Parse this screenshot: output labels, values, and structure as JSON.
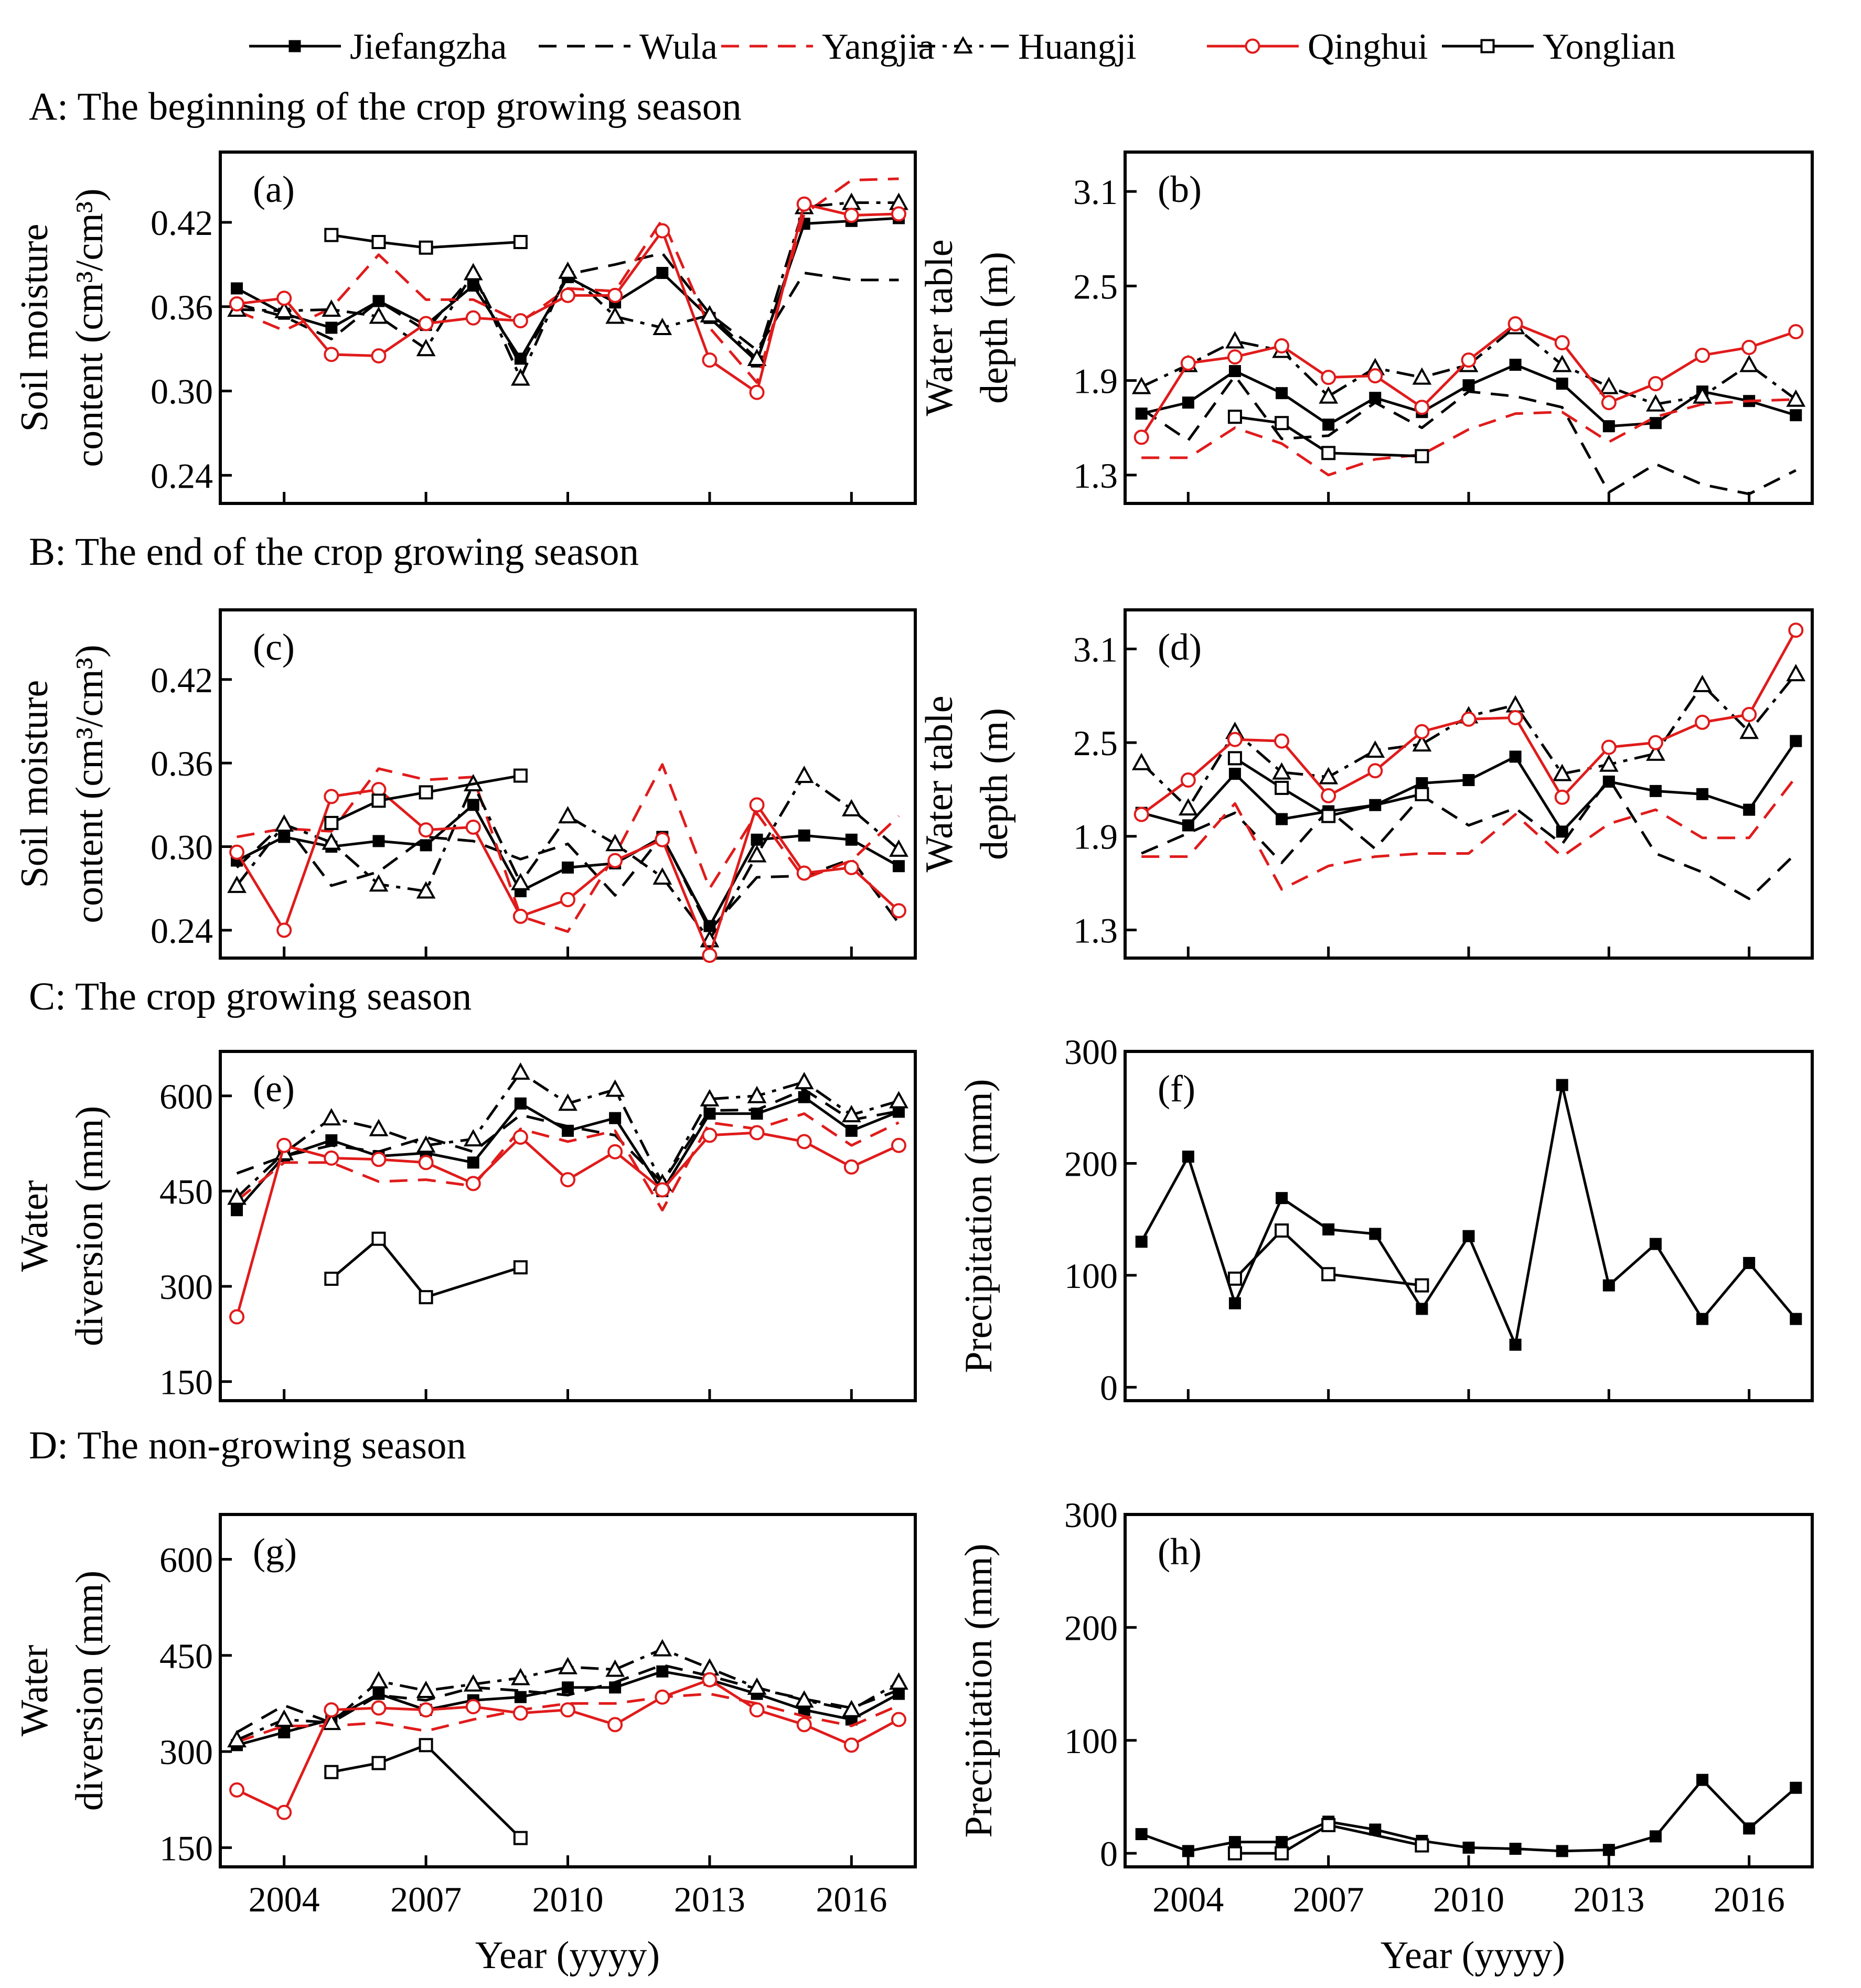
{
  "legend": [
    {
      "name": "Jiefangzha",
      "color": "#000000",
      "dash": "solid",
      "marker": "square-filled"
    },
    {
      "name": "Wula",
      "color": "#000000",
      "dash": "dash",
      "marker": "none"
    },
    {
      "name": "Yangjia",
      "color": "#e01b1b",
      "dash": "dash",
      "marker": "none"
    },
    {
      "name": "Huangji",
      "color": "#000000",
      "dash": "dashdot",
      "marker": "triangle-open"
    },
    {
      "name": "Qinghui",
      "color": "#e01b1b",
      "dash": "solid",
      "marker": "circle-open"
    },
    {
      "name": "Yonglian",
      "color": "#000000",
      "dash": "solid",
      "marker": "square-open"
    }
  ],
  "sections": {
    "A": "A: The beginning of the crop growing season",
    "B": "B: The end of the crop growing season",
    "C": "C: The crop growing season",
    "D": "D: The non-growing season"
  },
  "xlabel": "Year (yyyy)",
  "chart_data": [
    {
      "panel": "(a)",
      "type": "line",
      "ylabel_lines": [
        "Soil moisture",
        "content (cm³/cm³)"
      ],
      "ylim": [
        0.22,
        0.47
      ],
      "yticks": [
        0.24,
        0.3,
        0.36,
        0.42
      ],
      "ytick_decimals": 2,
      "x": [
        2003,
        2004,
        2005,
        2006,
        2007,
        2008,
        2009,
        2010,
        2011,
        2012,
        2013,
        2014,
        2015,
        2016,
        2017
      ],
      "series": [
        {
          "name": "Jiefangzha",
          "values": [
            0.373,
            0.355,
            0.345,
            0.364,
            0.347,
            0.375,
            0.323,
            0.381,
            0.363,
            0.384,
            0.352,
            0.321,
            0.419,
            0.421,
            0.423
          ]
        },
        {
          "name": "Wula",
          "values": [
            0.362,
            0.353,
            0.337,
            0.364,
            0.343,
            0.383,
            0.318,
            0.383,
            0.39,
            0.398,
            0.355,
            0.329,
            0.384,
            0.379,
            0.379
          ]
        },
        {
          "name": "Yangjia",
          "values": [
            0.357,
            0.343,
            0.359,
            0.397,
            0.365,
            0.365,
            0.349,
            0.373,
            0.371,
            0.422,
            0.345,
            0.306,
            0.426,
            0.45,
            0.451
          ]
        },
        {
          "name": "Huangji",
          "values": [
            0.358,
            0.357,
            0.358,
            0.353,
            0.33,
            0.384,
            0.309,
            0.385,
            0.353,
            0.345,
            0.354,
            0.323,
            0.431,
            0.434,
            0.434
          ]
        },
        {
          "name": "Qinghui",
          "values": [
            0.362,
            0.366,
            0.326,
            0.325,
            0.348,
            0.352,
            0.35,
            0.368,
            0.368,
            0.414,
            0.322,
            0.299,
            0.433,
            0.425,
            0.426
          ]
        },
        {
          "name": "Yonglian",
          "values": [
            null,
            null,
            0.411,
            0.406,
            0.402,
            null,
            0.406,
            null,
            null,
            null,
            null,
            null,
            null,
            null,
            null
          ]
        }
      ]
    },
    {
      "panel": "(b)",
      "type": "line",
      "ylabel_lines": [
        "Water table",
        "depth (m)"
      ],
      "ylim": [
        1.12,
        3.35
      ],
      "yticks": [
        1.3,
        1.9,
        2.5,
        3.1
      ],
      "ytick_decimals": 1,
      "x": [
        2003,
        2004,
        2005,
        2006,
        2007,
        2008,
        2009,
        2010,
        2011,
        2012,
        2013,
        2014,
        2015,
        2016,
        2017
      ],
      "series": [
        {
          "name": "Jiefangzha",
          "values": [
            1.69,
            1.76,
            1.96,
            1.82,
            1.62,
            1.79,
            1.7,
            1.87,
            2.0,
            1.88,
            1.61,
            1.63,
            1.83,
            1.77,
            1.68
          ]
        },
        {
          "name": "Wula",
          "values": [
            1.72,
            1.52,
            1.93,
            1.53,
            1.55,
            1.76,
            1.6,
            1.83,
            1.8,
            1.73,
            1.19,
            1.37,
            1.24,
            1.18,
            1.33
          ]
        },
        {
          "name": "Yangjia",
          "values": [
            1.41,
            1.41,
            1.6,
            1.5,
            1.3,
            1.4,
            1.43,
            1.59,
            1.69,
            1.7,
            1.51,
            1.67,
            1.75,
            1.77,
            1.78
          ]
        },
        {
          "name": "Huangji",
          "values": [
            1.86,
            2.0,
            2.15,
            2.09,
            1.8,
            1.98,
            1.92,
            2.0,
            2.24,
            2.0,
            1.86,
            1.75,
            1.8,
            2.0,
            1.78
          ]
        },
        {
          "name": "Qinghui",
          "values": [
            1.54,
            2.01,
            2.05,
            2.12,
            1.92,
            1.93,
            1.73,
            2.03,
            2.26,
            2.14,
            1.76,
            1.88,
            2.06,
            2.11,
            2.21
          ]
        },
        {
          "name": "Yonglian",
          "values": [
            null,
            null,
            1.67,
            1.63,
            1.44,
            null,
            1.42,
            null,
            null,
            null,
            null,
            null,
            null,
            null,
            null
          ]
        }
      ]
    },
    {
      "panel": "(c)",
      "type": "line",
      "ylabel_lines": [
        "Soil moisture",
        "content (cm³/cm³)"
      ],
      "ylim": [
        0.22,
        0.47
      ],
      "yticks": [
        0.24,
        0.3,
        0.36,
        0.42
      ],
      "ytick_decimals": 2,
      "x": [
        2003,
        2004,
        2005,
        2006,
        2007,
        2008,
        2009,
        2010,
        2011,
        2012,
        2013,
        2014,
        2015,
        2016,
        2017
      ],
      "series": [
        {
          "name": "Jiefangzha",
          "values": [
            0.29,
            0.307,
            0.3,
            0.304,
            0.301,
            0.33,
            0.268,
            0.285,
            0.288,
            0.307,
            0.243,
            0.305,
            0.308,
            0.305,
            0.286
          ]
        },
        {
          "name": "Wula",
          "values": [
            0.285,
            0.317,
            0.272,
            0.282,
            0.307,
            0.304,
            0.291,
            0.302,
            0.265,
            0.308,
            0.24,
            0.278,
            0.279,
            0.291,
            0.245
          ]
        },
        {
          "name": "Yangjia",
          "values": [
            0.307,
            0.313,
            0.311,
            0.356,
            0.348,
            0.35,
            0.25,
            0.239,
            0.294,
            0.359,
            0.27,
            0.324,
            0.277,
            0.29,
            0.322
          ]
        },
        {
          "name": "Huangji",
          "values": [
            0.272,
            0.316,
            0.303,
            0.273,
            0.268,
            0.345,
            0.274,
            0.322,
            0.302,
            0.278,
            0.233,
            0.294,
            0.351,
            0.327,
            0.298
          ]
        },
        {
          "name": "Qinghui",
          "values": [
            0.296,
            0.24,
            0.336,
            0.341,
            0.312,
            0.314,
            0.25,
            0.262,
            0.29,
            0.305,
            0.222,
            0.33,
            0.281,
            0.285,
            0.254
          ]
        },
        {
          "name": "Yonglian",
          "values": [
            null,
            null,
            0.317,
            0.333,
            0.339,
            null,
            0.351,
            null,
            null,
            null,
            null,
            null,
            null,
            null,
            null
          ]
        }
      ]
    },
    {
      "panel": "(d)",
      "type": "line",
      "ylabel_lines": [
        "Water table",
        "depth (m)"
      ],
      "ylim": [
        1.12,
        3.35
      ],
      "yticks": [
        1.3,
        1.9,
        2.5,
        3.1
      ],
      "ytick_decimals": 1,
      "x": [
        2003,
        2004,
        2005,
        2006,
        2007,
        2008,
        2009,
        2010,
        2011,
        2012,
        2013,
        2014,
        2015,
        2016,
        2017
      ],
      "series": [
        {
          "name": "Jiefangzha",
          "values": [
            2.05,
            1.97,
            2.3,
            2.01,
            2.06,
            2.1,
            2.24,
            2.26,
            2.41,
            1.93,
            2.25,
            2.19,
            2.17,
            2.07,
            2.51
          ]
        },
        {
          "name": "Wula",
          "values": [
            1.79,
            1.92,
            2.05,
            1.73,
            2.07,
            1.82,
            2.16,
            1.97,
            2.08,
            1.85,
            2.27,
            1.79,
            1.67,
            1.5,
            1.79
          ]
        },
        {
          "name": "Yangjia",
          "values": [
            1.77,
            1.77,
            2.11,
            1.56,
            1.71,
            1.77,
            1.79,
            1.79,
            2.04,
            1.77,
            1.98,
            2.07,
            1.89,
            1.89,
            2.28
          ]
        },
        {
          "name": "Huangji",
          "values": [
            2.37,
            2.08,
            2.57,
            2.31,
            2.28,
            2.45,
            2.49,
            2.67,
            2.74,
            2.3,
            2.36,
            2.43,
            2.87,
            2.57,
            2.94
          ]
        },
        {
          "name": "Qinghui",
          "values": [
            2.04,
            2.26,
            2.52,
            2.51,
            2.16,
            2.32,
            2.57,
            2.65,
            2.66,
            2.15,
            2.47,
            2.5,
            2.63,
            2.68,
            3.22
          ]
        },
        {
          "name": "Yonglian",
          "values": [
            null,
            null,
            2.4,
            2.21,
            2.03,
            null,
            2.17,
            null,
            null,
            null,
            null,
            null,
            null,
            null,
            null
          ]
        }
      ]
    },
    {
      "panel": "(e)",
      "type": "line",
      "ylabel_lines": [
        "Water",
        "diversion (mm)"
      ],
      "ylim": [
        120,
        670
      ],
      "yticks": [
        150,
        300,
        450,
        600
      ],
      "ytick_decimals": 0,
      "x": [
        2003,
        2004,
        2005,
        2006,
        2007,
        2008,
        2009,
        2010,
        2011,
        2012,
        2013,
        2014,
        2015,
        2016,
        2017
      ],
      "series": [
        {
          "name": "Jiefangzha",
          "values": [
            420,
            505,
            530,
            505,
            510,
            495,
            588,
            545,
            565,
            450,
            572,
            572,
            598,
            545,
            575
          ]
        },
        {
          "name": "Wula",
          "values": [
            478,
            505,
            522,
            512,
            535,
            512,
            570,
            552,
            538,
            463,
            577,
            578,
            610,
            562,
            576
          ]
        },
        {
          "name": "Yangjia",
          "values": [
            435,
            495,
            495,
            465,
            468,
            458,
            548,
            528,
            545,
            420,
            558,
            548,
            572,
            522,
            558
          ]
        },
        {
          "name": "Huangji",
          "values": [
            440,
            510,
            565,
            548,
            522,
            532,
            637,
            588,
            610,
            462,
            595,
            600,
            622,
            570,
            592
          ]
        },
        {
          "name": "Qinghui",
          "values": [
            252,
            522,
            502,
            500,
            495,
            462,
            535,
            468,
            512,
            452,
            538,
            542,
            528,
            488,
            522
          ]
        },
        {
          "name": "Yonglian",
          "values": [
            null,
            null,
            312,
            375,
            283,
            null,
            330,
            null,
            null,
            null,
            null,
            null,
            null,
            null,
            null
          ]
        }
      ]
    },
    {
      "panel": "(f)",
      "type": "line",
      "ylabel_lines": [
        "Precipitation (mm)"
      ],
      "ylim": [
        -12,
        300
      ],
      "yticks": [
        0,
        100,
        200,
        300
      ],
      "ytick_decimals": 0,
      "x": [
        2003,
        2004,
        2005,
        2006,
        2007,
        2008,
        2009,
        2010,
        2011,
        2012,
        2013,
        2014,
        2015,
        2016,
        2017
      ],
      "series": [
        {
          "name": "Jiefangzha",
          "values": [
            130,
            206,
            75,
            169,
            141,
            137,
            70,
            135,
            38,
            270,
            91,
            128,
            61,
            111,
            61
          ]
        },
        {
          "name": "Yonglian",
          "values": [
            null,
            null,
            97,
            140,
            101,
            null,
            91,
            null,
            null,
            null,
            null,
            null,
            null,
            null,
            null
          ]
        }
      ]
    },
    {
      "panel": "(g)",
      "type": "line",
      "ylabel_lines": [
        "Water",
        "diversion (mm)"
      ],
      "ylim": [
        120,
        670
      ],
      "yticks": [
        150,
        300,
        450,
        600
      ],
      "ytick_decimals": 0,
      "x": [
        2003,
        2004,
        2005,
        2006,
        2007,
        2008,
        2009,
        2010,
        2011,
        2012,
        2013,
        2014,
        2015,
        2016,
        2017
      ],
      "series": [
        {
          "name": "Jiefangzha",
          "values": [
            310,
            330,
            350,
            390,
            365,
            380,
            385,
            400,
            400,
            425,
            412,
            390,
            365,
            350,
            390
          ]
        },
        {
          "name": "Wula",
          "values": [
            330,
            372,
            345,
            388,
            380,
            400,
            395,
            388,
            408,
            435,
            418,
            398,
            382,
            368,
            396
          ]
        },
        {
          "name": "Yangjia",
          "values": [
            315,
            340,
            340,
            345,
            332,
            350,
            365,
            375,
            375,
            385,
            390,
            375,
            355,
            340,
            372
          ]
        },
        {
          "name": "Huangji",
          "values": [
            318,
            350,
            345,
            410,
            395,
            405,
            415,
            432,
            428,
            460,
            430,
            400,
            380,
            365,
            408
          ]
        },
        {
          "name": "Qinghui",
          "values": [
            240,
            205,
            365,
            368,
            365,
            370,
            360,
            365,
            342,
            385,
            412,
            365,
            342,
            310,
            350
          ]
        },
        {
          "name": "Yonglian",
          "values": [
            null,
            null,
            268,
            282,
            310,
            null,
            165,
            null,
            null,
            null,
            null,
            null,
            null,
            null,
            null
          ]
        }
      ]
    },
    {
      "panel": "(h)",
      "type": "line",
      "ylabel_lines": [
        "Precipitation (mm)"
      ],
      "ylim": [
        -12,
        300
      ],
      "yticks": [
        0,
        100,
        200,
        300
      ],
      "ytick_decimals": 0,
      "x": [
        2003,
        2004,
        2005,
        2006,
        2007,
        2008,
        2009,
        2010,
        2011,
        2012,
        2013,
        2014,
        2015,
        2016,
        2017
      ],
      "series": [
        {
          "name": "Jiefangzha",
          "values": [
            17,
            2,
            10,
            10,
            28,
            21,
            11,
            5,
            4,
            2,
            3,
            15,
            65,
            22,
            58
          ]
        },
        {
          "name": "Yonglian",
          "values": [
            null,
            null,
            0,
            0,
            25,
            null,
            7,
            null,
            null,
            null,
            null,
            null,
            null,
            null,
            null
          ]
        }
      ]
    }
  ],
  "xticks": [
    2004,
    2007,
    2010,
    2013,
    2016
  ]
}
